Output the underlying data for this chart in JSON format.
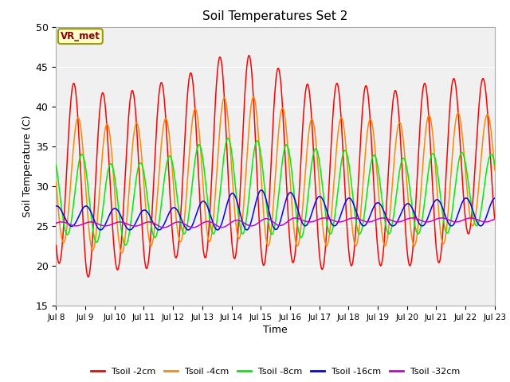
{
  "title": "Soil Temperatures Set 2",
  "xlabel": "Time",
  "ylabel": "Soil Temperature (C)",
  "xlim": [
    0,
    15
  ],
  "ylim": [
    15,
    50
  ],
  "xtick_labels": [
    "Jul 8",
    "Jul 9",
    "Jul 10",
    "Jul 11",
    "Jul 12",
    "Jul 13",
    "Jul 14",
    "Jul 15",
    "Jul 16",
    "Jul 17",
    "Jul 18",
    "Jul 19",
    "Jul 20",
    "Jul 21",
    "Jul 22",
    "Jul 23"
  ],
  "ytick_values": [
    15,
    20,
    25,
    30,
    35,
    40,
    45,
    50
  ],
  "annotation_text": "VR_met",
  "bg_color": "#e8e8e8",
  "inner_bg_color": "#f0f0f0",
  "line_colors": {
    "2cm": "#ff0000",
    "4cm": "#ff8800",
    "8cm": "#00ee00",
    "16cm": "#0000ff",
    "32cm": "#cc00cc"
  },
  "legend_labels": [
    "Tsoil -2cm",
    "Tsoil -4cm",
    "Tsoil -8cm",
    "Tsoil -16cm",
    "Tsoil -32cm"
  ],
  "peaks_2cm": [
    42,
    43.5,
    40.5,
    43,
    43,
    45,
    47,
    46,
    44,
    42,
    43.5,
    42,
    42,
    43.5,
    43.5
  ],
  "troughs_2cm": [
    20.5,
    18.5,
    19.5,
    19.5,
    21,
    21,
    21,
    20,
    20.5,
    19.5,
    20,
    20,
    20,
    20,
    24
  ],
  "peaks_4cm": [
    38,
    39,
    37,
    38.5,
    38.5,
    40.5,
    41.5,
    41,
    39,
    38,
    39,
    38,
    38,
    39.5,
    39
  ],
  "troughs_4cm": [
    23,
    22,
    21.5,
    22.5,
    23,
    23,
    23.5,
    22.5,
    22.5,
    22.5,
    22.5,
    22.5,
    22.5,
    22.5,
    25
  ],
  "peaks_8cm": [
    34,
    34,
    32,
    33.5,
    34,
    36,
    36,
    35.5,
    35,
    34.5,
    34.5,
    33.5,
    33.5,
    34.5,
    34
  ],
  "troughs_8cm": [
    24,
    23,
    22.5,
    23.5,
    24,
    24,
    24,
    24,
    23.5,
    24,
    24,
    24,
    24,
    24,
    25
  ],
  "peaks_16cm": [
    27.5,
    27.5,
    27,
    27,
    27.5,
    28.5,
    29.5,
    29.5,
    29,
    28.5,
    28.5,
    27.5,
    28,
    28.5,
    28.5
  ],
  "troughs_16cm": [
    25,
    24.5,
    24.5,
    24.5,
    24.5,
    24.5,
    24.5,
    24.5,
    25,
    25,
    25,
    25,
    25,
    25,
    25
  ],
  "peaks_32cm": [
    25.5,
    25.5,
    25.5,
    25.5,
    25.5,
    25.6,
    25.8,
    26.0,
    26.0,
    26.0,
    26.0,
    26.0,
    26.0,
    26.0,
    26.0
  ],
  "troughs_32cm": [
    25.0,
    25.0,
    25.0,
    24.8,
    24.8,
    24.8,
    25.0,
    25.0,
    25.5,
    25.5,
    25.5,
    25.5,
    25.5,
    25.5,
    25.5
  ],
  "lag_2cm": 0.0,
  "lag_4cm": 0.15,
  "lag_8cm": 0.28,
  "lag_16cm": 0.42,
  "lag_32cm": 0.58
}
